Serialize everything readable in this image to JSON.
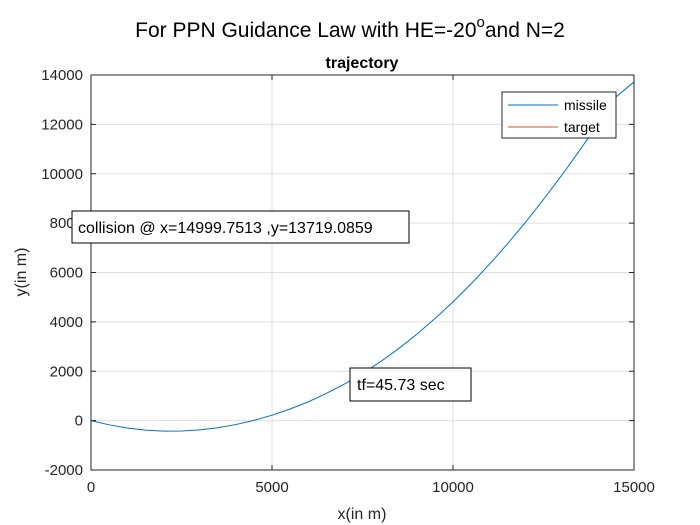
{
  "figure": {
    "suptitle_main": "For PPN Guidance Law with HE=-20",
    "suptitle_sup": "o",
    "suptitle_tail": "and N=2"
  },
  "chart_data": {
    "type": "line",
    "title": "trajectory",
    "xlabel": "x(in m)",
    "ylabel": "y(in m)",
    "xlim": [
      0,
      15000
    ],
    "ylim": [
      -2000,
      14000
    ],
    "xticks": [
      0,
      5000,
      10000,
      15000
    ],
    "yticks": [
      -2000,
      0,
      2000,
      4000,
      6000,
      8000,
      10000,
      12000,
      14000
    ],
    "xtick_labels": [
      "0",
      "5000",
      "10000",
      "15000"
    ],
    "ytick_labels": [
      "-2000",
      "0",
      "2000",
      "4000",
      "6000",
      "8000",
      "10000",
      "12000",
      "14000"
    ],
    "grid": true,
    "legend_position": "top-right",
    "series": [
      {
        "name": "missile",
        "color": "#0072BD",
        "x": [
          0,
          500,
          1000,
          1500,
          2000,
          2500,
          3000,
          3500,
          4000,
          4500,
          5000,
          5500,
          6000,
          6500,
          7000,
          7500,
          8000,
          8500,
          9000,
          9500,
          10000,
          10500,
          11000,
          11500,
          12000,
          12500,
          13000,
          13500,
          14000,
          14500,
          14999.7513
        ],
        "y": [
          0,
          -170,
          -300,
          -385,
          -425,
          -420,
          -375,
          -290,
          -160,
          10,
          220,
          470,
          760,
          1100,
          1480,
          1910,
          2390,
          2920,
          3500,
          4130,
          4810,
          5540,
          6320,
          7150,
          8030,
          8960,
          9930,
          10950,
          12010,
          13110,
          13719.0859
        ]
      },
      {
        "name": "target",
        "color": "#D95319",
        "x": [
          15000,
          15000
        ],
        "y": [
          0,
          13719.0859
        ]
      }
    ],
    "annotations": [
      {
        "text": "collision @ x=14999.7513 ,y=13719.0859"
      },
      {
        "text": "tf=45.73 sec"
      }
    ]
  }
}
